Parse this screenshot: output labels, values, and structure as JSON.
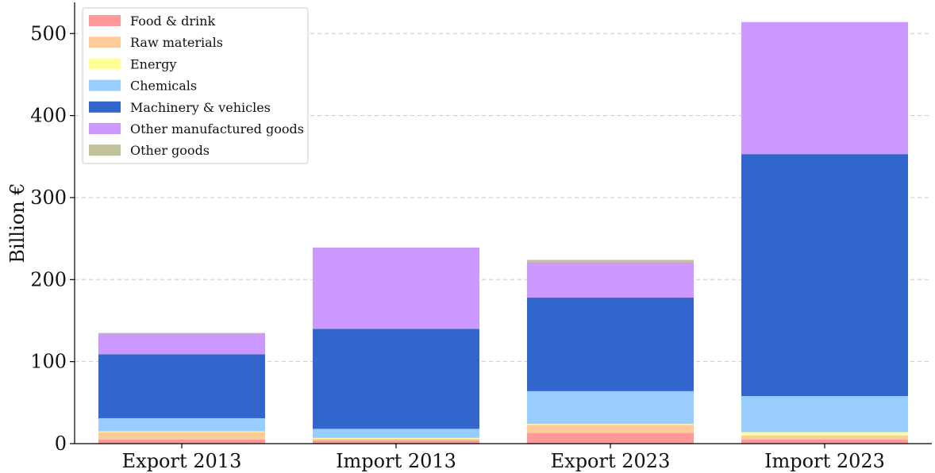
{
  "chart_data": {
    "type": "bar",
    "stacked": true,
    "categories": [
      "Export 2013",
      "Import 2013",
      "Export 2023",
      "Import 2023"
    ],
    "ylabel": "Billion €",
    "xlabel": "",
    "ylim": [
      0,
      540
    ],
    "yticks": [
      0,
      100,
      200,
      300,
      400,
      500
    ],
    "grid": "y, dashed",
    "legend_position": "top-left",
    "series": [
      {
        "name": "Food & drink",
        "color": "#ff9999",
        "values": [
          5,
          4,
          13,
          5
        ]
      },
      {
        "name": "Raw materials",
        "color": "#ffcc99",
        "values": [
          9,
          2,
          10,
          5
        ]
      },
      {
        "name": "Energy",
        "color": "#ffff99",
        "values": [
          1,
          1,
          1,
          4
        ]
      },
      {
        "name": "Chemicals",
        "color": "#99ccff",
        "values": [
          16,
          11,
          40,
          44
        ]
      },
      {
        "name": "Machinery & vehicles",
        "color": "#3366cc",
        "values": [
          78,
          122,
          114,
          295
        ]
      },
      {
        "name": "Other manufactured goods",
        "color": "#cc99ff",
        "values": [
          25,
          99,
          43,
          161
        ]
      },
      {
        "name": "Other goods",
        "color": "#c2c29a",
        "values": [
          1,
          0,
          3,
          0
        ]
      }
    ]
  }
}
